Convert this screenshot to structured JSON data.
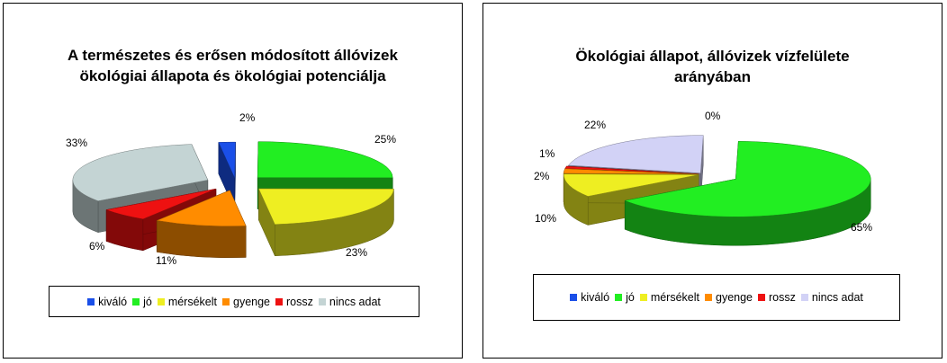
{
  "chart_data": [
    {
      "type": "pie",
      "title_line1": "A természetes és erősen módosított állóvizek",
      "title_line2": "ökológiai állapota és ökológiai potenciálja",
      "categories": [
        "kiváló",
        "jó",
        "mérsékelt",
        "gyenge",
        "rossz",
        "nincs adat"
      ],
      "values": [
        2,
        25,
        23,
        11,
        6,
        33
      ],
      "labels": [
        "2%",
        "25%",
        "23%",
        "11%",
        "6%",
        "33%"
      ],
      "colors": [
        "#1a4fe8",
        "#22ee22",
        "#eeee22",
        "#ff8c00",
        "#ee1111",
        "#c4d4d4"
      ],
      "legend_position": "bottom"
    },
    {
      "type": "pie",
      "title_line1": "Ökológiai állapot, állóvizek vízfelülete",
      "title_line2": "arányában",
      "categories": [
        "kiváló",
        "jó",
        "mérsékelt",
        "gyenge",
        "rossz",
        "nincs adat"
      ],
      "values": [
        0,
        65,
        10,
        2,
        1,
        22
      ],
      "labels": [
        "0%",
        "65%",
        "10%",
        "2%",
        "1%",
        "22%"
      ],
      "colors": [
        "#1a4fe8",
        "#22ee22",
        "#eeee22",
        "#ff8c00",
        "#ee1111",
        "#d2d2f6"
      ],
      "legend_position": "bottom"
    }
  ]
}
